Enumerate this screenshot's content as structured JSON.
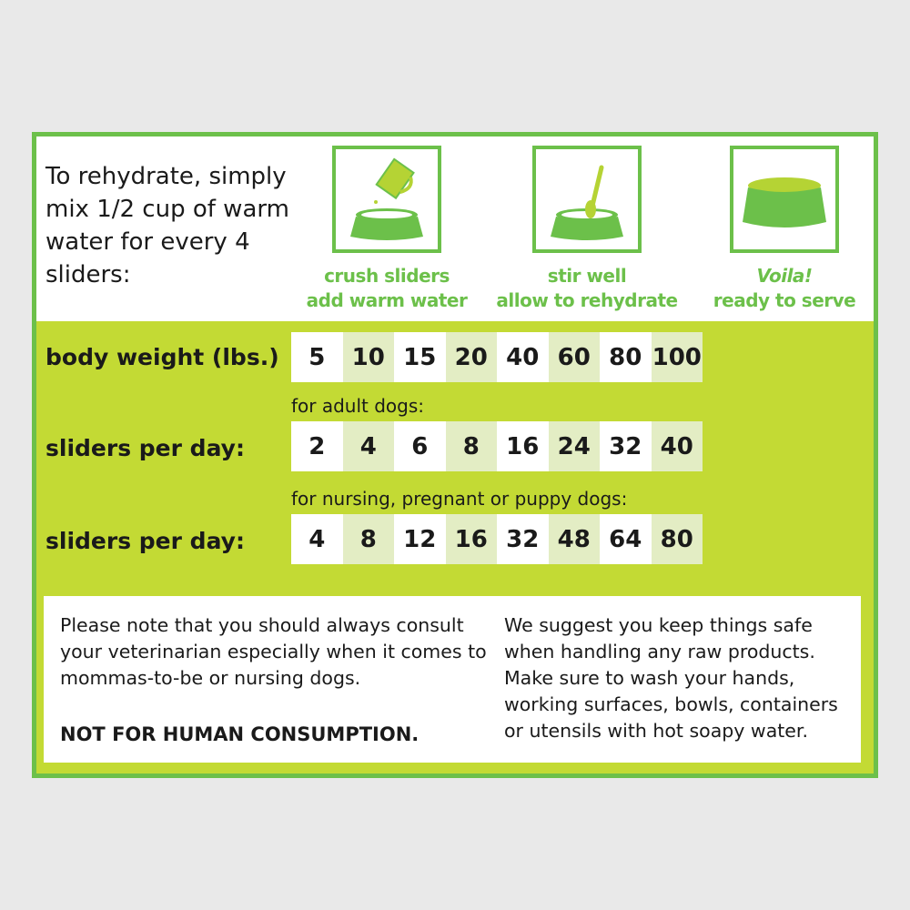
{
  "intro": "To rehydrate, simply mix 1/2 cup of warm water for every 4 sliders:",
  "steps": [
    {
      "icon": "pitcher-pouring-into-bowl-icon",
      "line1": "crush sliders",
      "line2": "add warm water"
    },
    {
      "icon": "spoon-in-bowl-icon",
      "line1": "stir well",
      "line2": "allow to rehydrate"
    },
    {
      "icon": "full-food-bowl-icon",
      "line1": "Voila!",
      "line2": "ready to serve"
    }
  ],
  "table": {
    "weight_label": "body weight (lbs.)",
    "weights": [
      "5",
      "10",
      "15",
      "20",
      "40",
      "60",
      "80",
      "100"
    ],
    "adult_caption": "for adult dogs:",
    "adult_label": "sliders per day:",
    "adult": [
      "2",
      "4",
      "6",
      "8",
      "16",
      "24",
      "32",
      "40"
    ],
    "puppy_caption": "for nursing, pregnant or puppy dogs:",
    "puppy_label": "sliders per day:",
    "puppy": [
      "4",
      "8",
      "12",
      "16",
      "32",
      "48",
      "64",
      "80"
    ]
  },
  "notes": {
    "left": "Please note that you should always consult your veterinarian especially when it comes to mommas-to-be or nursing dogs.",
    "warning": "NOT FOR HUMAN CONSUMPTION.",
    "right": "We suggest you keep things safe when handling any raw products. Make sure to wash your hands, working surfaces, bowls, containers or utensils with hot soapy water."
  },
  "colors": {
    "frame": "#6cc04a",
    "lime": "#c3da34",
    "cell_alt": "#e3edc4",
    "background": "#e9e9e9"
  }
}
